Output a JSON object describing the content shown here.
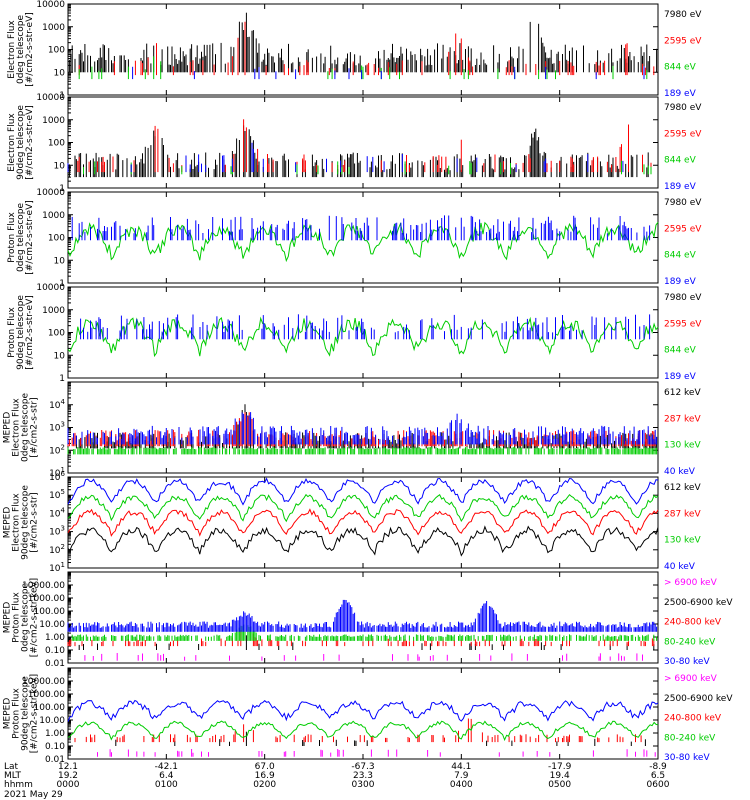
{
  "chart_data": [
    {
      "type": "line",
      "ylabel": [
        "Electron Flux",
        "0deg telescope",
        "[#/cm2-s-str-eV]"
      ],
      "yscale": "log",
      "ylim": [
        1,
        10000
      ],
      "yticks": [
        "10000",
        "1000",
        "100",
        "10",
        "1"
      ],
      "series": [
        {
          "name": "7980 eV",
          "color": "#000000",
          "base": 20,
          "spread": 1.0,
          "coverage": 0.55,
          "style": "bars",
          "bursts": [
            [
              0.3,
              1.5
            ],
            [
              0.79,
              1.5
            ]
          ]
        },
        {
          "name": "2595 eV",
          "color": "#ff0000",
          "base": 15,
          "spread": 0.4,
          "coverage": 0.12,
          "style": "bars",
          "bursts": [
            [
              0.15,
              0.8
            ],
            [
              0.3,
              2.0
            ],
            [
              0.66,
              1.6
            ],
            [
              0.95,
              1.2
            ]
          ]
        },
        {
          "name": "844 eV",
          "color": "#00cc00",
          "base": 10,
          "spread": 0.3,
          "coverage": 0.05,
          "style": "bars",
          "bursts": [
            [
              0.15,
              0.5
            ],
            [
              0.3,
              0.8
            ]
          ]
        },
        {
          "name": "189 eV",
          "color": "#0000ff",
          "base": 10,
          "spread": 0.3,
          "coverage": 0.02,
          "style": "bars",
          "bursts": []
        }
      ]
    },
    {
      "type": "line",
      "ylabel": [
        "Electron Flux",
        "90deg telescope",
        "[#/cm2-s-str-eV]"
      ],
      "yscale": "log",
      "ylim": [
        1,
        10000
      ],
      "yticks": [
        "10000",
        "1000",
        "100",
        "10",
        "1"
      ],
      "series": [
        {
          "name": "7980 eV",
          "color": "#000000",
          "base": 6,
          "spread": 0.8,
          "coverage": 0.5,
          "style": "bars",
          "bursts": [
            [
              0.15,
              1.2
            ],
            [
              0.3,
              1.5
            ],
            [
              0.79,
              1.2
            ]
          ]
        },
        {
          "name": "2595 eV",
          "color": "#ff0000",
          "base": 10,
          "spread": 0.5,
          "coverage": 0.15,
          "style": "bars",
          "bursts": [
            [
              0.15,
              1.6
            ],
            [
              0.3,
              1.8
            ],
            [
              0.66,
              1.4
            ],
            [
              0.95,
              1.4
            ]
          ]
        },
        {
          "name": "844 eV",
          "color": "#00cc00",
          "base": 8,
          "spread": 0.3,
          "coverage": 0.05,
          "style": "bars",
          "bursts": [
            [
              0.15,
              1.0
            ],
            [
              0.3,
              1.0
            ]
          ]
        },
        {
          "name": "189 eV",
          "color": "#0000ff",
          "base": 10,
          "spread": 0.5,
          "coverage": 0.06,
          "style": "bars",
          "bursts": [
            [
              0.3,
              1.2
            ]
          ]
        }
      ]
    },
    {
      "type": "line",
      "ylabel": [
        "Proton Flux",
        "0deg telescope",
        "[#/cm2-s-str-eV]"
      ],
      "yscale": "log",
      "ylim": [
        1,
        10000
      ],
      "yticks": [
        "10000",
        "1000",
        "100",
        "10",
        "1"
      ],
      "series": [
        {
          "name": "7980 eV",
          "color": "#000000",
          "base": 1,
          "spread": 0,
          "coverage": 0,
          "style": "bars",
          "bursts": []
        },
        {
          "name": "2595 eV",
          "color": "#ff0000",
          "base": 1,
          "spread": 0,
          "coverage": 0,
          "style": "bars",
          "bursts": []
        },
        {
          "name": "844 eV",
          "color": "#00cc00",
          "base": 60,
          "spread": 0.6,
          "coverage": 1.0,
          "style": "arches",
          "bursts": []
        },
        {
          "name": "189 eV",
          "color": "#0000ff",
          "base": 150,
          "spread": 0.8,
          "coverage": 0.35,
          "style": "bars",
          "bursts": []
        }
      ]
    },
    {
      "type": "line",
      "ylabel": [
        "Proton Flux",
        "90deg telescope",
        "[#/cm2-s-str-eV]"
      ],
      "yscale": "log",
      "ylim": [
        1,
        10000
      ],
      "yticks": [
        "10000",
        "1000",
        "100",
        "10",
        "1"
      ],
      "series": [
        {
          "name": "7980 eV",
          "color": "#000000",
          "base": 1,
          "spread": 0,
          "coverage": 0,
          "style": "bars",
          "bursts": []
        },
        {
          "name": "2595 eV",
          "color": "#ff0000",
          "base": 1,
          "spread": 0,
          "coverage": 0,
          "style": "bars",
          "bursts": []
        },
        {
          "name": "844 eV",
          "color": "#00cc00",
          "base": 60,
          "spread": 0.6,
          "coverage": 1.0,
          "style": "arches",
          "bursts": []
        },
        {
          "name": "189 eV",
          "color": "#0000ff",
          "base": 100,
          "spread": 0.8,
          "coverage": 0.3,
          "style": "bars",
          "bursts": []
        }
      ]
    },
    {
      "type": "line",
      "ylabel": [
        "MEPED",
        "Electron Flux",
        "0deg telescope",
        "[#/cm2-s-str]"
      ],
      "yscale": "log",
      "ylim": [
        10,
        100000
      ],
      "yticks": [
        "10^4",
        "10^3",
        "10^2",
        "10^1"
      ],
      "series": [
        {
          "name": "612 keV",
          "color": "#000000",
          "base": 200,
          "spread": 0.5,
          "coverage": 0.6,
          "style": "band",
          "bursts": [
            [
              0.3,
              1.3
            ]
          ]
        },
        {
          "name": "287 keV",
          "color": "#ff0000",
          "base": 250,
          "spread": 0.5,
          "coverage": 0.6,
          "style": "band",
          "bursts": [
            [
              0.3,
              1.2
            ]
          ]
        },
        {
          "name": "130 keV",
          "color": "#00cc00",
          "base": 110,
          "spread": 0.1,
          "coverage": 0.8,
          "style": "band",
          "bursts": []
        },
        {
          "name": "40 keV",
          "color": "#0000ff",
          "base": 300,
          "spread": 0.6,
          "coverage": 0.6,
          "style": "band",
          "bursts": [
            [
              0.3,
              1.0
            ],
            [
              0.66,
              0.6
            ]
          ]
        }
      ]
    },
    {
      "type": "line",
      "ylabel": [
        "MEPED",
        "Electron Flux",
        "90deg telescope",
        "[#/cm2-s-str]"
      ],
      "yscale": "log",
      "ylim": [
        10,
        1000000
      ],
      "yticks": [
        "10^6",
        "10^5",
        "10^4",
        "10^3",
        "10^2",
        "10^1"
      ],
      "series": [
        {
          "name": "612 keV",
          "color": "#000000",
          "base": 300,
          "spread": 0.4,
          "coverage": 0.5,
          "style": "humps",
          "bursts": []
        },
        {
          "name": "287 keV",
          "color": "#ff0000",
          "base": 3000,
          "spread": 0.3,
          "coverage": 0.6,
          "style": "humps",
          "bursts": []
        },
        {
          "name": "130 keV",
          "color": "#00cc00",
          "base": 20000,
          "spread": 0.3,
          "coverage": 0.6,
          "style": "humps",
          "bursts": []
        },
        {
          "name": "40 keV",
          "color": "#0000ff",
          "base": 150000,
          "spread": 0.3,
          "coverage": 0.6,
          "style": "humps",
          "bursts": []
        }
      ]
    },
    {
      "type": "line",
      "ylabel": [
        "MEPED",
        "Proton Flux",
        "0deg telescope",
        "[#/cm2-s-str-keV]"
      ],
      "yscale": "log",
      "ylim": [
        0.01,
        100000
      ],
      "yticks": [
        "10000.00",
        "1000.00",
        "100.00",
        "10.00",
        "1.00",
        "0.10",
        "0.01"
      ],
      "series": [
        {
          "name": "> 6900 keV",
          "color": "#ff00ff",
          "base": 0.03,
          "spread": 0.3,
          "coverage": 0.1,
          "style": "bars",
          "bursts": []
        },
        {
          "name": "2500-6900 keV",
          "color": "#000000",
          "base": 0.2,
          "spread": 0.3,
          "coverage": 0.05,
          "style": "bars",
          "bursts": [
            [
              0.3,
              0.7
            ]
          ]
        },
        {
          "name": "240-800 keV",
          "color": "#ff0000",
          "base": 0.4,
          "spread": 0.3,
          "coverage": 0.25,
          "style": "bars",
          "bursts": [
            [
              0.3,
              1.0
            ]
          ]
        },
        {
          "name": "80-240 keV",
          "color": "#00cc00",
          "base": 1.0,
          "spread": 0.2,
          "coverage": 0.7,
          "style": "bars",
          "bursts": [
            [
              0.3,
              1.0
            ]
          ]
        },
        {
          "name": "30-80 keV",
          "color": "#0000ff",
          "base": 5,
          "spread": 0.5,
          "coverage": 0.9,
          "style": "bars",
          "bursts": [
            [
              0.3,
              1.0
            ],
            [
              0.47,
              2.0
            ],
            [
              0.71,
              1.8
            ]
          ]
        }
      ]
    },
    {
      "type": "line",
      "ylabel": [
        "MEPED",
        "Proton Flux",
        "90deg telescope",
        "[#/cm2-s-str-keV]"
      ],
      "yscale": "log",
      "ylim": [
        0.01,
        100000
      ],
      "yticks": [
        "10000.00",
        "1000.00",
        "100.00",
        "10.00",
        "1.00",
        "0.10",
        "0.01"
      ],
      "series": [
        {
          "name": "> 6900 keV",
          "color": "#ff00ff",
          "base": 0.03,
          "spread": 0.3,
          "coverage": 0.1,
          "style": "bars",
          "bursts": []
        },
        {
          "name": "2500-6900 keV",
          "color": "#000000",
          "base": 0.2,
          "spread": 0.3,
          "coverage": 0.05,
          "style": "bars",
          "bursts": [
            [
              0.3,
              0.7
            ],
            [
              0.68,
              1.0
            ]
          ]
        },
        {
          "name": "240-800 keV",
          "color": "#ff0000",
          "base": 0.4,
          "spread": 0.3,
          "coverage": 0.25,
          "style": "bars",
          "bursts": [
            [
              0.3,
              1.0
            ],
            [
              0.68,
              1.5
            ]
          ]
        },
        {
          "name": "80-240 keV",
          "color": "#00cc00",
          "base": 1.5,
          "spread": 0.3,
          "coverage": 0.7,
          "style": "humps",
          "bursts": []
        },
        {
          "name": "30-80 keV",
          "color": "#0000ff",
          "base": 50,
          "spread": 0.5,
          "coverage": 0.9,
          "style": "humps",
          "bursts": []
        }
      ]
    }
  ],
  "x_axis": {
    "row_labels": [
      "Lat",
      "MLT",
      "hhmm",
      "2021 May 29"
    ],
    "ticks": [
      {
        "lat": "12.1",
        "mlt": "19.2",
        "hhmm": "0000"
      },
      {
        "lat": "-42.1",
        "mlt": "6.4",
        "hhmm": "0100"
      },
      {
        "lat": "67.0",
        "mlt": "16.9",
        "hhmm": "0200"
      },
      {
        "lat": "-67.3",
        "mlt": "23.3",
        "hhmm": "0300"
      },
      {
        "lat": "44.1",
        "mlt": "7.9",
        "hhmm": "0400"
      },
      {
        "lat": "-17.9",
        "mlt": "19.4",
        "hhmm": "0500"
      },
      {
        "lat": "-8.9",
        "mlt": "6.5",
        "hhmm": "0600"
      }
    ]
  }
}
